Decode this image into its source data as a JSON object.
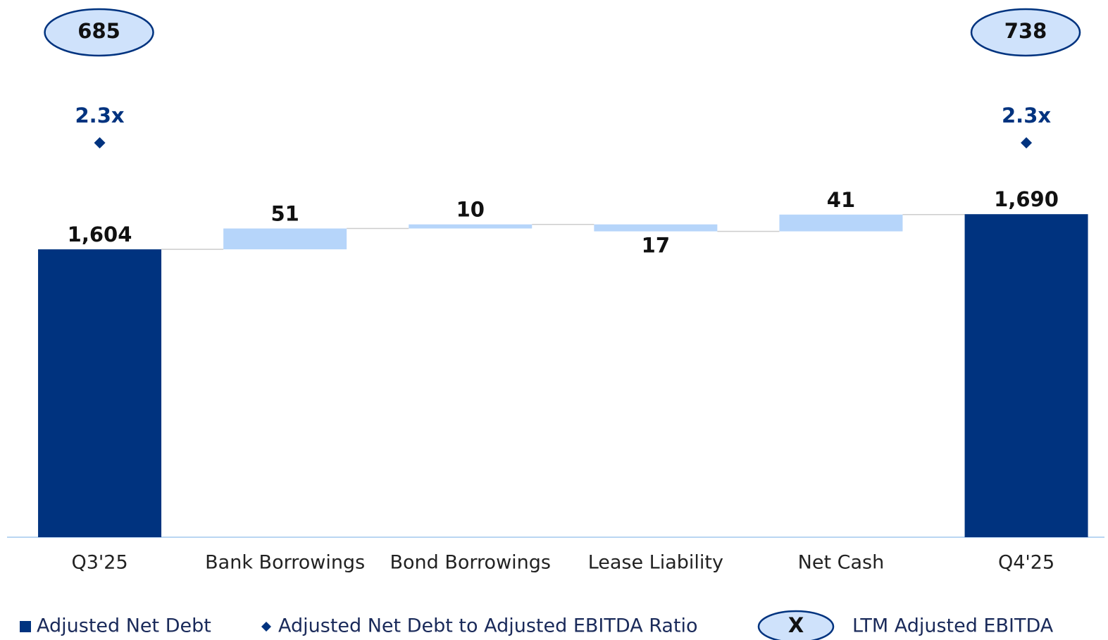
{
  "chart_data": {
    "type": "waterfall",
    "categories": [
      "Q3'25",
      "Bank Borrowings",
      "Bond Borrowings",
      "Lease Liability",
      "Net Cash",
      "Q4'25"
    ],
    "series": [
      {
        "name": "Adjusted Net Debt",
        "color": "#00337f",
        "change_color": "#b6d5fa",
        "values": [
          1604,
          51,
          10,
          -17,
          41,
          1690
        ],
        "value_labels": [
          "1,604",
          "51",
          "10",
          "17",
          "41",
          "1,690"
        ],
        "totals": [
          true,
          false,
          false,
          false,
          false,
          true
        ]
      },
      {
        "name": "Adjusted Net Debt to Adjusted EBITDA Ratio",
        "color": "#00337f",
        "axis": "y2",
        "marker": "diamond",
        "values": [
          2.3,
          null,
          null,
          null,
          null,
          2.3
        ],
        "value_labels": [
          "2.3x",
          null,
          null,
          null,
          null,
          "2.3x"
        ]
      },
      {
        "name": "LTM Adjusted EBITDA",
        "color": "#cfe2fb",
        "legend_symbol": "X",
        "values": [
          685,
          null,
          null,
          null,
          null,
          738
        ]
      }
    ],
    "ylim": [
      900,
      2200
    ],
    "y2lim": [
      0,
      3.1
    ]
  }
}
